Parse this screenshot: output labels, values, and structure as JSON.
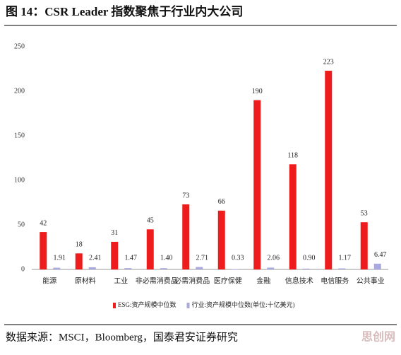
{
  "chart_data": {
    "type": "bar",
    "title": "图 14：CSR Leader 指数聚焦于行业内大公司",
    "categories": [
      "能源",
      "原材料",
      "工业",
      "非必需消费品",
      "必需消费品",
      "医疗保健",
      "金融",
      "信息技术",
      "电信服务",
      "公共事业"
    ],
    "series": [
      {
        "name": "ESG:资产规模中位数",
        "color": "#ee1c1c",
        "values": [
          42,
          18,
          31,
          45,
          73,
          66,
          190,
          118,
          223,
          53
        ]
      },
      {
        "name": "行业:资产规模中位数(单位:十亿美元)",
        "color": "#a9a9de",
        "values": [
          1.91,
          2.41,
          1.47,
          1.4,
          2.71,
          0.33,
          2.06,
          0.9,
          1.17,
          6.47
        ],
        "value_labels": [
          "1.91",
          "2.41",
          "1.47",
          "1.40",
          "2.71",
          "0.33",
          "2.06",
          "0.90",
          "1.17",
          "6.47"
        ]
      }
    ],
    "ylim": [
      0,
      250
    ],
    "yticks": [
      0,
      50,
      100,
      150,
      200,
      250
    ],
    "grid": false,
    "legend": "bottom",
    "source": "数据来源：MSCI，Bloomberg，国泰君安证券研究",
    "watermark": "思创网"
  }
}
